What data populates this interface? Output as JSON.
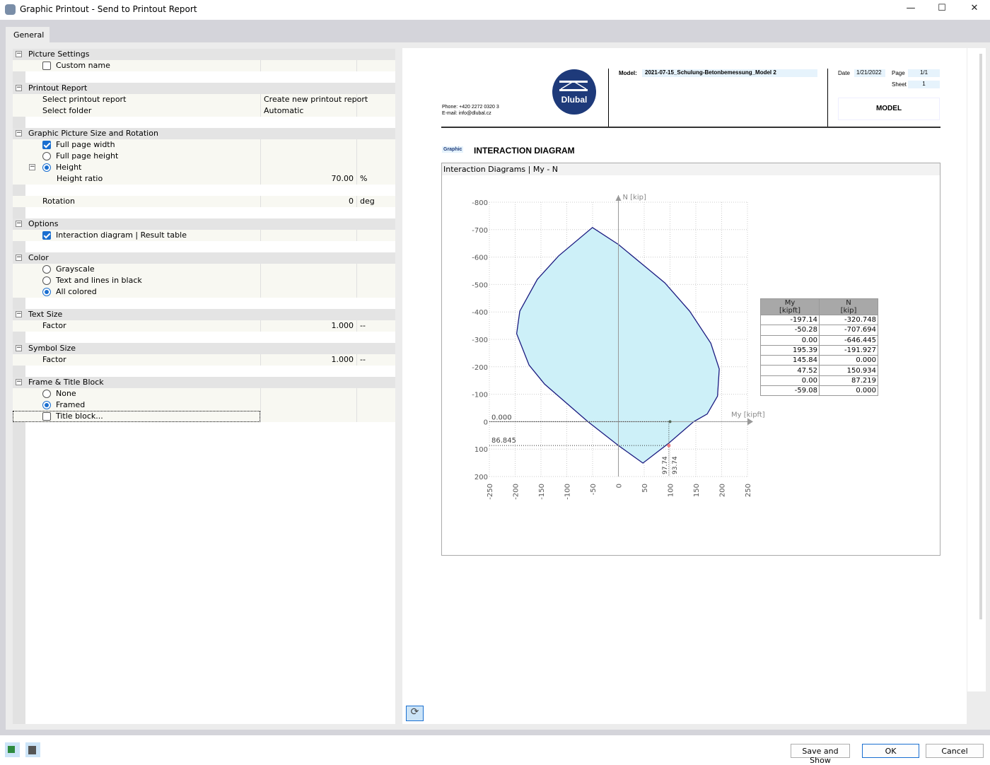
{
  "window": {
    "title": "Graphic Printout - Send to Printout Report",
    "minimize": "—",
    "maximize": "☐",
    "close": "✕"
  },
  "tabs": [
    {
      "label": "General"
    }
  ],
  "settings": [
    {
      "type": "group",
      "label": "Picture Settings"
    },
    {
      "type": "check",
      "label": "Custom name",
      "checked": false
    },
    {
      "type": "blank"
    },
    {
      "type": "group",
      "label": "Printout Report"
    },
    {
      "type": "item",
      "label": "Select printout report",
      "value": "Create new printout report",
      "align": "center"
    },
    {
      "type": "item",
      "label": "Select folder",
      "value": "Automatic",
      "align": "left"
    },
    {
      "type": "blank"
    },
    {
      "type": "group",
      "label": "Graphic Picture Size and Rotation"
    },
    {
      "type": "check",
      "label": "Full page width",
      "checked": true
    },
    {
      "type": "radio",
      "label": "Full page height",
      "checked": false
    },
    {
      "type": "radio",
      "label": "Height",
      "checked": true,
      "expander": true
    },
    {
      "type": "item",
      "label": "Height ratio",
      "value": "70.00",
      "unit": "%",
      "align": "right",
      "indent": true
    },
    {
      "type": "blank"
    },
    {
      "type": "item",
      "label": "Rotation",
      "value": "0",
      "unit": "deg",
      "align": "right"
    },
    {
      "type": "blank"
    },
    {
      "type": "group",
      "label": "Options"
    },
    {
      "type": "check",
      "label": "Interaction diagram | Result table",
      "checked": true
    },
    {
      "type": "blank"
    },
    {
      "type": "group",
      "label": "Color"
    },
    {
      "type": "radio",
      "label": "Grayscale",
      "checked": false
    },
    {
      "type": "radio",
      "label": "Text and lines in black",
      "checked": false
    },
    {
      "type": "radio",
      "label": "All colored",
      "checked": true
    },
    {
      "type": "blank"
    },
    {
      "type": "group",
      "label": "Text Size"
    },
    {
      "type": "item",
      "label": "Factor",
      "value": "1.000",
      "unit": "--",
      "align": "right"
    },
    {
      "type": "blank"
    },
    {
      "type": "group",
      "label": "Symbol Size"
    },
    {
      "type": "item",
      "label": "Factor",
      "value": "1.000",
      "unit": "--",
      "align": "right"
    },
    {
      "type": "blank"
    },
    {
      "type": "group",
      "label": "Frame & Title Block"
    },
    {
      "type": "radio",
      "label": "None",
      "checked": false
    },
    {
      "type": "radio",
      "label": "Framed",
      "checked": true
    },
    {
      "type": "check",
      "label": "Title block...",
      "checked": false,
      "focused": true
    }
  ],
  "report": {
    "phone": "Phone: +420 2272 0320 3",
    "email": "E-mail: info@dlubal.cz",
    "logo_text": "Dlubal",
    "model_label": "Model:",
    "model_value": "2021-07-15_Schulung-Betonbemessung_Model 2",
    "date_label": "Date",
    "date_value": "1/21/2022",
    "page_label": "Page",
    "page_value": "1/1",
    "sheet_label": "Sheet",
    "sheet_value": "1",
    "block_title": "MODEL",
    "graphic_tag": "Graphic",
    "section_title": "INTERACTION DIAGRAM",
    "chart_title": "Interaction Diagrams | My - N"
  },
  "colors": {
    "fill": "#cdf0f8",
    "outline": "#1a1a80",
    "logo": "#1e3a7a",
    "accent": "#1a6fd0"
  },
  "chart_data": {
    "type": "area",
    "xlabel": "My [kipft]",
    "ylabel": "N [kip]",
    "xlim": [
      -250,
      250
    ],
    "ylim": [
      -800,
      200
    ],
    "y_inverted": true,
    "xticks": [
      -250,
      -200,
      -150,
      -100,
      -50,
      0,
      50,
      100,
      150,
      200,
      250
    ],
    "yticks": [
      -800,
      -700,
      -600,
      -500,
      -400,
      -300,
      -200,
      -100,
      0,
      100,
      200
    ],
    "grid": true,
    "outline": [
      [
        -50.3,
        -707.7
      ],
      [
        0,
        -646
      ],
      [
        90,
        -506
      ],
      [
        138,
        -403
      ],
      [
        179,
        -286
      ],
      [
        195.4,
        -192
      ],
      [
        192,
        -93
      ],
      [
        172,
        -28
      ],
      [
        145.8,
        0
      ],
      [
        96.5,
        80
      ],
      [
        47.5,
        151
      ],
      [
        0,
        87
      ],
      [
        -59.1,
        0
      ],
      [
        -143,
        -137
      ],
      [
        -173,
        -206
      ],
      [
        -197.1,
        -320.7
      ],
      [
        -191,
        -403
      ],
      [
        -157,
        -519
      ],
      [
        -116,
        -604
      ]
    ],
    "annotations": [
      {
        "label": "0.000",
        "x": 100,
        "y": 0
      },
      {
        "label": "86.845",
        "x": 97.74,
        "y": 86.845
      },
      {
        "label": "97.74",
        "x": 97.74,
        "y": 86.845
      },
      {
        "label": "93.74",
        "x": 97.74,
        "y": 86.845
      }
    ],
    "table": {
      "headers": [
        [
          "My",
          "[kipft]"
        ],
        [
          "N",
          "[kip]"
        ]
      ],
      "rows": [
        [
          "-197.14",
          "-320.748"
        ],
        [
          "-50.28",
          "-707.694"
        ],
        [
          "0.00",
          "-646.445"
        ],
        [
          "195.39",
          "-191.927"
        ],
        [
          "145.84",
          "0.000"
        ],
        [
          "47.52",
          "150.934"
        ],
        [
          "0.00",
          "87.219"
        ],
        [
          "-59.08",
          "0.000"
        ]
      ]
    }
  },
  "footer": {
    "save_show": "Save and Show",
    "ok": "OK",
    "cancel": "Cancel"
  }
}
